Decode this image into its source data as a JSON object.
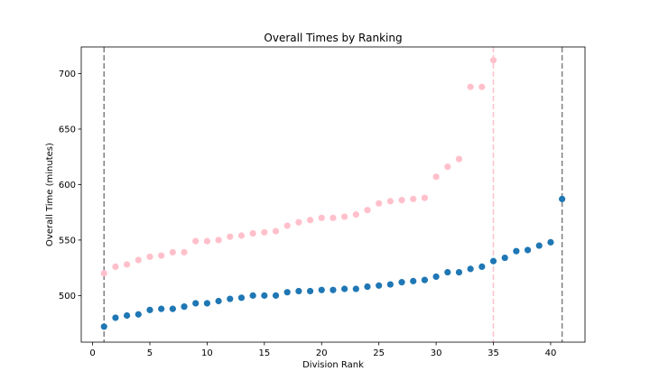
{
  "chart_data": {
    "type": "scatter",
    "title": "Overall Times by Ranking",
    "xlabel": "Division Rank",
    "ylabel": "Overall Time (minutes)",
    "xlim": [
      -0.99,
      43.0
    ],
    "ylim": [
      458,
      724
    ],
    "xticks": [
      0,
      5,
      10,
      15,
      20,
      25,
      30,
      35,
      40
    ],
    "yticks": [
      500,
      550,
      600,
      650,
      700
    ],
    "grid": false,
    "series": [
      {
        "color": "#ffc0cb",
        "x": [
          1,
          2,
          3,
          4,
          5,
          6,
          7,
          8,
          9,
          10,
          11,
          12,
          13,
          14,
          15,
          16,
          17,
          18,
          19,
          20,
          21,
          22,
          23,
          24,
          25,
          26,
          27,
          28,
          29,
          30,
          31,
          32,
          33,
          34,
          35
        ],
        "y": [
          520,
          526,
          528,
          532,
          535,
          536,
          539,
          539,
          549,
          549,
          550,
          553,
          554,
          556,
          557,
          558,
          563,
          566,
          568,
          570,
          570,
          571,
          573,
          577,
          583,
          585,
          586,
          587,
          588,
          607,
          616,
          623,
          688,
          688,
          712
        ]
      },
      {
        "color": "#1f77b4",
        "x": [
          1,
          2,
          3,
          4,
          5,
          6,
          7,
          8,
          9,
          10,
          11,
          12,
          13,
          14,
          15,
          16,
          17,
          18,
          19,
          20,
          21,
          22,
          23,
          24,
          25,
          26,
          27,
          28,
          29,
          30,
          31,
          32,
          33,
          34,
          35,
          36,
          37,
          38,
          39,
          40,
          41
        ],
        "y": [
          472,
          480,
          482,
          483,
          487,
          488,
          488,
          490,
          493,
          493,
          495,
          497,
          498,
          500,
          500,
          500,
          503,
          504,
          504,
          505,
          505,
          506,
          506,
          508,
          509,
          510,
          512,
          513,
          514,
          517,
          521,
          521,
          524,
          526,
          531,
          534,
          540,
          541,
          545,
          548,
          587
        ]
      }
    ],
    "vlines": [
      {
        "x": 1,
        "color": "#808080",
        "style": "dashed"
      },
      {
        "x": 41,
        "color": "#808080",
        "style": "dashed"
      },
      {
        "x": 35,
        "color": "#ffc0cb",
        "style": "dashed"
      }
    ]
  }
}
